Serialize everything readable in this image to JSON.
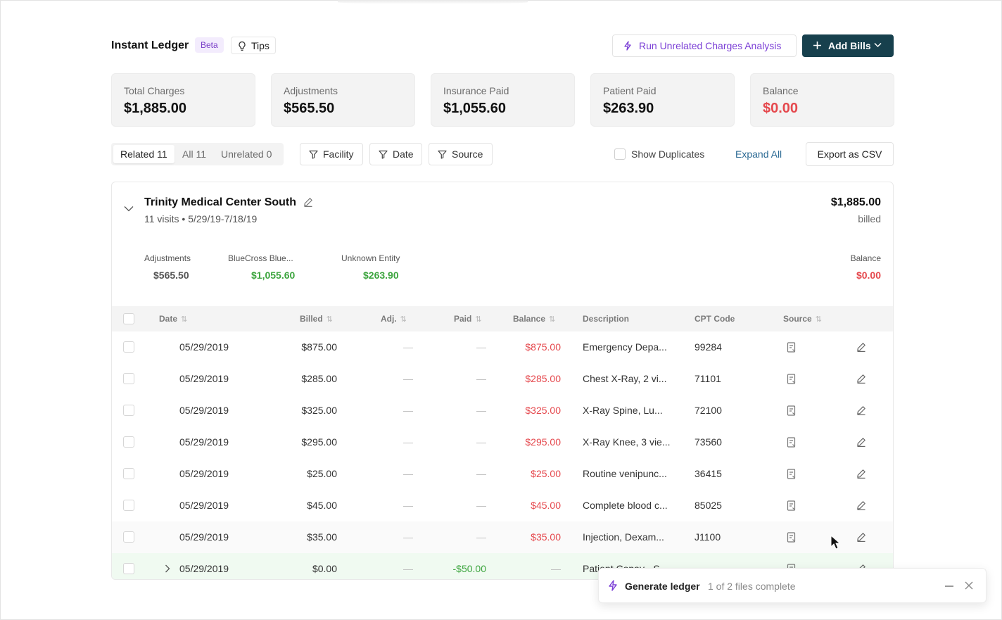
{
  "header": {
    "title": "Instant Ledger",
    "beta_badge": "Beta",
    "tips_label": "Tips",
    "run_analysis_label": "Run Unrelated Charges Analysis",
    "add_bills_label": "Add Bills"
  },
  "stats": [
    {
      "label": "Total Charges",
      "value": "$1,885.00"
    },
    {
      "label": "Adjustments",
      "value": "$565.50"
    },
    {
      "label": "Insurance Paid",
      "value": "$1,055.60"
    },
    {
      "label": "Patient Paid",
      "value": "$263.90"
    },
    {
      "label": "Balance",
      "value": "$0.00"
    }
  ],
  "filters": {
    "tabs": [
      "Related 11",
      "All 11",
      "Unrelated 0"
    ],
    "facility_label": "Facility",
    "date_label": "Date",
    "source_label": "Source",
    "show_duplicates_label": "Show Duplicates",
    "expand_all_label": "Expand All",
    "export_label": "Export as CSV"
  },
  "facility": {
    "name": "Trinity Medical Center South",
    "visits": "11 visits • 5/29/19-7/18/19",
    "billed_amount": "$1,885.00",
    "billed_label": "billed",
    "summary": [
      {
        "label": "Adjustments",
        "value": "$565.50"
      },
      {
        "label": "BlueCross Blue...",
        "value": "$1,055.60"
      },
      {
        "label": "Unknown Entity",
        "value": "$263.90"
      },
      {
        "label": "Balance",
        "value": "$0.00"
      }
    ]
  },
  "table": {
    "columns": [
      "Date",
      "Billed",
      "Adj.",
      "Paid",
      "Balance",
      "Description",
      "CPT Code",
      "Source"
    ],
    "rows": [
      {
        "date": "05/29/2019",
        "billed": "$875.00",
        "adj": "—",
        "paid": "—",
        "balance": "$875.00",
        "description": "Emergency Depa...",
        "cpt": "99284"
      },
      {
        "date": "05/29/2019",
        "billed": "$285.00",
        "adj": "—",
        "paid": "—",
        "balance": "$285.00",
        "description": "Chest X-Ray, 2 vi...",
        "cpt": "71101"
      },
      {
        "date": "05/29/2019",
        "billed": "$325.00",
        "adj": "—",
        "paid": "—",
        "balance": "$325.00",
        "description": "X-Ray Spine, Lu...",
        "cpt": "72100"
      },
      {
        "date": "05/29/2019",
        "billed": "$295.00",
        "adj": "—",
        "paid": "—",
        "balance": "$295.00",
        "description": "X-Ray Knee, 3 vie...",
        "cpt": "73560"
      },
      {
        "date": "05/29/2019",
        "billed": "$25.00",
        "adj": "—",
        "paid": "—",
        "balance": "$25.00",
        "description": "Routine venipunc...",
        "cpt": "36415"
      },
      {
        "date": "05/29/2019",
        "billed": "$45.00",
        "adj": "—",
        "paid": "—",
        "balance": "$45.00",
        "description": "Complete blood c...",
        "cpt": "85025"
      },
      {
        "date": "05/29/2019",
        "billed": "$35.00",
        "adj": "—",
        "paid": "—",
        "balance": "$35.00",
        "description": "Injection, Dexam...",
        "cpt": "J1100"
      },
      {
        "date": "05/29/2019",
        "billed": "$0.00",
        "adj": "—",
        "paid": "-$50.00",
        "balance": "—",
        "description": "Patient Copay - S...",
        "cpt": "—"
      }
    ]
  },
  "toast": {
    "title": "Generate ledger",
    "status": "1 of 2 files complete"
  },
  "colors": {
    "primary_dark": "#17404d",
    "accent_purple": "#7b3fd6",
    "balance_red": "#e5484d",
    "paid_green": "#3da53f",
    "link_blue": "#2b6a94"
  }
}
